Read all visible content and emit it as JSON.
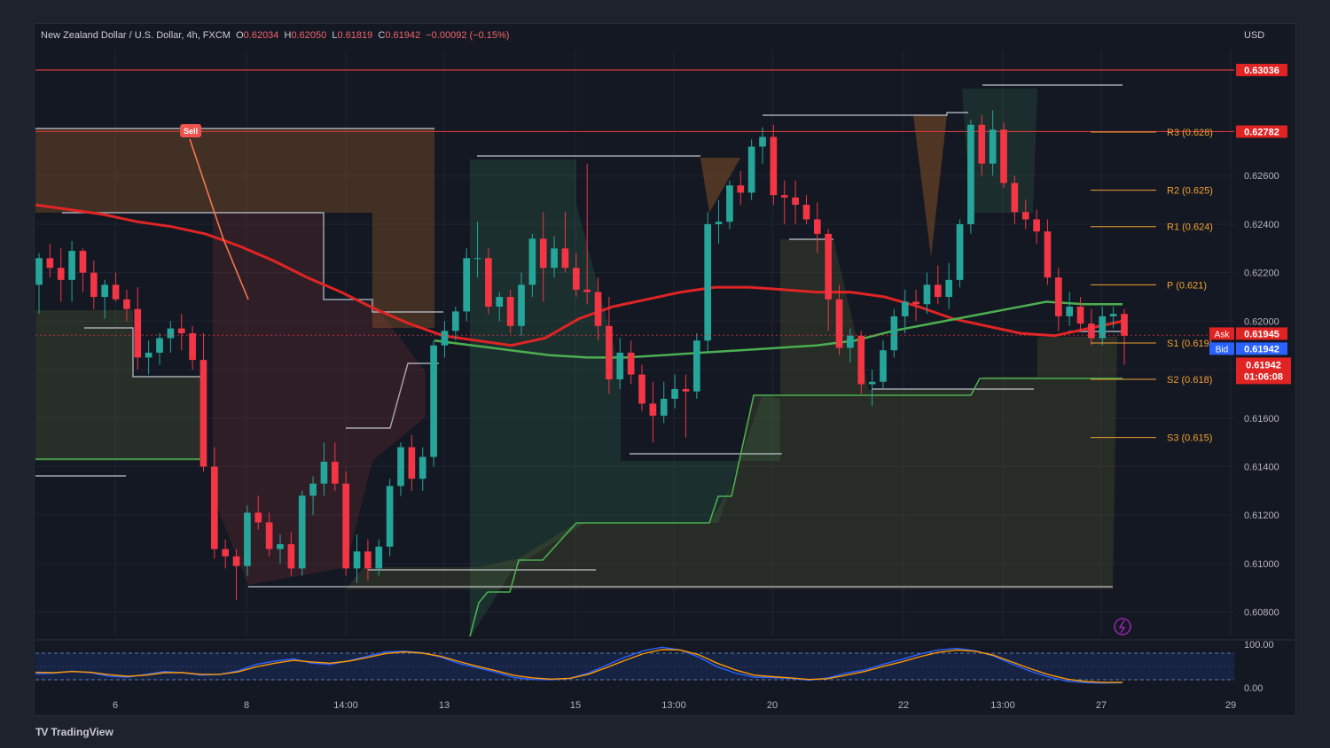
{
  "header": {
    "symbol": "New Zealand Dollar / U.S. Dollar, 4h, FXCM",
    "o_label": "O",
    "o_value": "0.62034",
    "h_label": "H",
    "h_value": "0.62050",
    "l_label": "L",
    "l_value": "0.61819",
    "c_label": "C",
    "c_value": "0.61942",
    "change": "−0.00092 (−0.15%)"
  },
  "currency": "USD",
  "brand": "TradingView",
  "colors": {
    "up": "#26a69a",
    "down": "#f23645",
    "ema": "#e02424",
    "support": "#4caf50",
    "pivot": "#f0a030",
    "grid": "#1e2330"
  },
  "chart_data": {
    "type": "candlestick",
    "ylim": [
      0.607,
      0.6312
    ],
    "y_ticks": [
      "0.60800",
      "0.61000",
      "0.61200",
      "0.61400",
      "0.61600",
      "0.61800",
      "0.62000",
      "0.62200",
      "0.62400",
      "0.62600"
    ],
    "x_ticks": [
      "6",
      "8",
      "14:00",
      "13",
      "15",
      "13:00",
      "20",
      "22",
      "13:00",
      "27",
      "29"
    ],
    "candles": [
      [
        0.6215,
        0.6228,
        0.6203,
        0.6226
      ],
      [
        0.6226,
        0.6232,
        0.6218,
        0.6222
      ],
      [
        0.6222,
        0.623,
        0.6208,
        0.6217
      ],
      [
        0.6217,
        0.6233,
        0.6208,
        0.6229
      ],
      [
        0.6229,
        0.623,
        0.6212,
        0.622
      ],
      [
        0.622,
        0.6225,
        0.6205,
        0.621
      ],
      [
        0.621,
        0.6217,
        0.6201,
        0.6215
      ],
      [
        0.6215,
        0.622,
        0.6208,
        0.6209
      ],
      [
        0.6209,
        0.6213,
        0.62,
        0.6205
      ],
      [
        0.6205,
        0.6214,
        0.618,
        0.6185
      ],
      [
        0.6185,
        0.6192,
        0.6178,
        0.6187
      ],
      [
        0.6187,
        0.6195,
        0.6182,
        0.6193
      ],
      [
        0.6193,
        0.62,
        0.6187,
        0.6197
      ],
      [
        0.6197,
        0.6203,
        0.6188,
        0.6195
      ],
      [
        0.6195,
        0.6198,
        0.618,
        0.6184
      ],
      [
        0.6184,
        0.6195,
        0.6138,
        0.614
      ],
      [
        0.614,
        0.6148,
        0.6102,
        0.6106
      ],
      [
        0.6106,
        0.611,
        0.6098,
        0.6103
      ],
      [
        0.6103,
        0.6106,
        0.6085,
        0.6099
      ],
      [
        0.6099,
        0.6124,
        0.6095,
        0.6121
      ],
      [
        0.6121,
        0.6128,
        0.6114,
        0.6117
      ],
      [
        0.6117,
        0.6121,
        0.6103,
        0.6106
      ],
      [
        0.6106,
        0.6112,
        0.61,
        0.6108
      ],
      [
        0.6108,
        0.6113,
        0.6095,
        0.6098
      ],
      [
        0.6098,
        0.613,
        0.6095,
        0.6128
      ],
      [
        0.6128,
        0.6136,
        0.612,
        0.6133
      ],
      [
        0.6133,
        0.615,
        0.6128,
        0.6142
      ],
      [
        0.6142,
        0.615,
        0.613,
        0.6133
      ],
      [
        0.6133,
        0.6138,
        0.6095,
        0.6098
      ],
      [
        0.6098,
        0.6112,
        0.6092,
        0.6105
      ],
      [
        0.6105,
        0.611,
        0.6093,
        0.6098
      ],
      [
        0.6098,
        0.611,
        0.6095,
        0.6107
      ],
      [
        0.6107,
        0.6135,
        0.6103,
        0.6132
      ],
      [
        0.6132,
        0.615,
        0.6128,
        0.6148
      ],
      [
        0.6148,
        0.6153,
        0.613,
        0.6135
      ],
      [
        0.6135,
        0.6148,
        0.613,
        0.6144
      ],
      [
        0.6144,
        0.6192,
        0.614,
        0.619
      ],
      [
        0.619,
        0.62,
        0.6185,
        0.6196
      ],
      [
        0.6196,
        0.6206,
        0.6192,
        0.6204
      ],
      [
        0.6204,
        0.623,
        0.62,
        0.6226
      ],
      [
        0.6226,
        0.6241,
        0.6218,
        0.6226
      ],
      [
        0.6226,
        0.623,
        0.6203,
        0.6206
      ],
      [
        0.6206,
        0.6212,
        0.62,
        0.621
      ],
      [
        0.621,
        0.6213,
        0.6195,
        0.6198
      ],
      [
        0.6198,
        0.622,
        0.6194,
        0.6215
      ],
      [
        0.6215,
        0.6236,
        0.621,
        0.6234
      ],
      [
        0.6234,
        0.6245,
        0.6208,
        0.6222
      ],
      [
        0.6222,
        0.6235,
        0.6218,
        0.623
      ],
      [
        0.623,
        0.6245,
        0.622,
        0.6222
      ],
      [
        0.6222,
        0.6228,
        0.621,
        0.6213
      ],
      [
        0.6213,
        0.6265,
        0.6207,
        0.6212
      ],
      [
        0.6212,
        0.6218,
        0.6192,
        0.6198
      ],
      [
        0.6198,
        0.621,
        0.617,
        0.6176
      ],
      [
        0.6176,
        0.6193,
        0.6172,
        0.6187
      ],
      [
        0.6187,
        0.6192,
        0.6174,
        0.6178
      ],
      [
        0.6178,
        0.6182,
        0.6163,
        0.6166
      ],
      [
        0.6166,
        0.6175,
        0.615,
        0.6161
      ],
      [
        0.6161,
        0.6175,
        0.6158,
        0.6168
      ],
      [
        0.6168,
        0.6178,
        0.6164,
        0.6172
      ],
      [
        0.6172,
        0.6178,
        0.6152,
        0.6171
      ],
      [
        0.6171,
        0.6195,
        0.6168,
        0.6192
      ],
      [
        0.6192,
        0.6245,
        0.6187,
        0.624
      ],
      [
        0.624,
        0.625,
        0.6232,
        0.6241
      ],
      [
        0.6241,
        0.6258,
        0.6238,
        0.6256
      ],
      [
        0.6256,
        0.6262,
        0.6248,
        0.6253
      ],
      [
        0.6253,
        0.6275,
        0.625,
        0.6272
      ],
      [
        0.6272,
        0.628,
        0.6265,
        0.6276
      ],
      [
        0.6276,
        0.6281,
        0.6248,
        0.6252
      ],
      [
        0.6252,
        0.6258,
        0.624,
        0.6251
      ],
      [
        0.6251,
        0.6258,
        0.624,
        0.6248
      ],
      [
        0.6248,
        0.6252,
        0.624,
        0.6242
      ],
      [
        0.6242,
        0.6249,
        0.6228,
        0.6236
      ],
      [
        0.6236,
        0.6238,
        0.6196,
        0.6209
      ],
      [
        0.6209,
        0.6215,
        0.6186,
        0.6189
      ],
      [
        0.6189,
        0.6197,
        0.6183,
        0.6194
      ],
      [
        0.6194,
        0.6196,
        0.617,
        0.6174
      ],
      [
        0.6174,
        0.618,
        0.6165,
        0.6175
      ],
      [
        0.6175,
        0.6192,
        0.6172,
        0.6188
      ],
      [
        0.6188,
        0.6205,
        0.6185,
        0.6202
      ],
      [
        0.6202,
        0.6213,
        0.6195,
        0.6208
      ],
      [
        0.6208,
        0.6213,
        0.62,
        0.6207
      ],
      [
        0.6207,
        0.622,
        0.6203,
        0.6215
      ],
      [
        0.6215,
        0.6223,
        0.6207,
        0.621
      ],
      [
        0.621,
        0.6224,
        0.6205,
        0.6217
      ],
      [
        0.6217,
        0.6242,
        0.6214,
        0.624
      ],
      [
        0.624,
        0.6283,
        0.6236,
        0.6281
      ],
      [
        0.6281,
        0.6285,
        0.626,
        0.6265
      ],
      [
        0.6265,
        0.6287,
        0.626,
        0.6279
      ],
      [
        0.6279,
        0.6282,
        0.6255,
        0.6257
      ],
      [
        0.6257,
        0.626,
        0.624,
        0.6245
      ],
      [
        0.6245,
        0.625,
        0.6238,
        0.6242
      ],
      [
        0.6242,
        0.6246,
        0.6232,
        0.6237
      ],
      [
        0.6237,
        0.6242,
        0.6215,
        0.6218
      ],
      [
        0.6218,
        0.6222,
        0.6196,
        0.6202
      ],
      [
        0.6202,
        0.6212,
        0.6198,
        0.6206
      ],
      [
        0.6206,
        0.621,
        0.6196,
        0.6199
      ],
      [
        0.6199,
        0.6205,
        0.619,
        0.6193
      ],
      [
        0.6193,
        0.6206,
        0.619,
        0.6202
      ],
      [
        0.6202,
        0.6206,
        0.6197,
        0.6203
      ],
      [
        0.6203,
        0.6205,
        0.6182,
        0.6194
      ]
    ],
    "pivot_levels": [
      {
        "label": "R3 (0.628)",
        "value": 0.6278
      },
      {
        "label": "R2 (0.625)",
        "value": 0.6254
      },
      {
        "label": "R1 (0.624)",
        "value": 0.6239
      },
      {
        "label": "P (0.621)",
        "value": 0.6215
      },
      {
        "label": "S1 (0.619)",
        "value": 0.6191
      },
      {
        "label": "S2 (0.618)",
        "value": 0.6176
      },
      {
        "label": "S3 (0.615)",
        "value": 0.6152
      }
    ],
    "horizontal_lines": [
      {
        "value": 0.63036,
        "label": "0.63036"
      },
      {
        "value": 0.62782,
        "label": "0.62782"
      }
    ],
    "price_tags": {
      "ask_label": "Ask",
      "ask": "0.61945",
      "bid_label": "Bid",
      "bid": "0.61942",
      "last": "0.61942",
      "countdown": "01:06:08",
      "ask_value": 0.61945,
      "last_value": 0.61942
    },
    "signal": {
      "label": "Sell",
      "candle_index": 14,
      "price": 0.6278
    },
    "ema": [
      0.6248,
      0.6246,
      0.6244,
      0.6241,
      0.6239,
      0.6236,
      0.6231,
      0.6225,
      0.6218,
      0.6212,
      0.6205,
      0.6199,
      0.6194,
      0.6192,
      0.619,
      0.6193,
      0.6201,
      0.6206,
      0.6209,
      0.6212,
      0.6214,
      0.6214,
      0.6213,
      0.6212,
      0.6212,
      0.621,
      0.6206,
      0.6201,
      0.6198,
      0.6195,
      0.6194,
      0.6197,
      0.62
    ],
    "green_ma": [
      0.6192,
      0.619,
      0.6188,
      0.6186,
      0.6185,
      0.6185,
      0.6186,
      0.6187,
      0.6188,
      0.6189,
      0.619,
      0.6192,
      0.6196,
      0.6199,
      0.6202,
      0.6205,
      0.6208,
      0.6207,
      0.6207
    ],
    "stoch_levels": {
      "upper": "100.00",
      "lower": "0.00"
    },
    "stoch_k": [
      28,
      30,
      35,
      31,
      22,
      20,
      27,
      34,
      31,
      25,
      27,
      36,
      52,
      60,
      66,
      55,
      52,
      61,
      72,
      83,
      85,
      81,
      70,
      54,
      43,
      32,
      19,
      14,
      13,
      17,
      30,
      50,
      70,
      86,
      95,
      88,
      70,
      46,
      30,
      20,
      19,
      17,
      12,
      18,
      30,
      38,
      52,
      64,
      78,
      88,
      92,
      86,
      73,
      53,
      35,
      20,
      10,
      6,
      5,
      6
    ],
    "stoch_d": [
      32,
      31,
      34,
      32,
      26,
      22,
      25,
      31,
      31,
      27,
      27,
      33,
      46,
      55,
      62,
      58,
      55,
      60,
      69,
      79,
      83,
      80,
      72,
      59,
      47,
      36,
      24,
      18,
      15,
      17,
      27,
      44,
      62,
      79,
      89,
      88,
      76,
      55,
      38,
      25,
      21,
      18,
      14,
      16,
      25,
      34,
      47,
      58,
      71,
      82,
      88,
      85,
      75,
      58,
      41,
      26,
      15,
      9,
      7,
      7
    ]
  }
}
